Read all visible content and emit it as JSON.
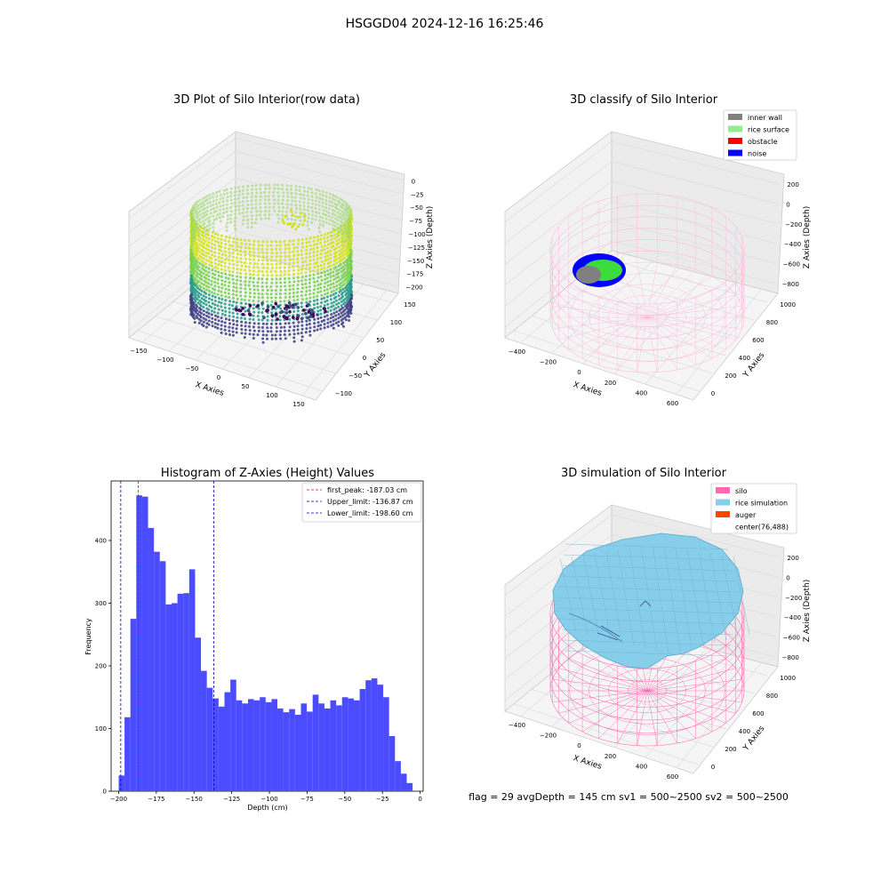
{
  "suptitle": "HSGGD04 2024-12-16 16:25:46",
  "footer": "flag = 29  avgDepth = 145 cm  sv1 = 500~2500  sv2 = 500~2500",
  "chart_data": [
    {
      "type": "scatter3d",
      "title": "3D Plot of Silo Interior(row data)",
      "xlabel": "X Axies",
      "ylabel": "Y Axies",
      "zlabel": "Z Axies (Depth)",
      "xticks": [
        "−150",
        "−100",
        "−50",
        "0",
        "50",
        "100",
        "150"
      ],
      "yticks": [
        "−100",
        "−50",
        "0",
        "50",
        "100",
        "150"
      ],
      "zticks": [
        "0",
        "−25",
        "−50",
        "−75",
        "−100",
        "−125",
        "−150",
        "−175",
        "−200"
      ],
      "xlim": [
        -170,
        170
      ],
      "ylim": [
        -110,
        170
      ],
      "zlim": [
        -210,
        0
      ],
      "colormap": "viridis",
      "colors": {
        "ring_bright": "#d4e21a",
        "ring_mid": "#7ad151",
        "ring_teal": "#2a9c8a",
        "ring_dark": "#414487",
        "floor": "#440154"
      }
    },
    {
      "type": "scatter3d",
      "title": "3D classify of Silo Interior",
      "xlabel": "X Axies",
      "ylabel": "Y Axies",
      "zlabel": "Z Axies (Depth)",
      "xticks": [
        "−400",
        "−200",
        "0",
        "200",
        "400",
        "600"
      ],
      "yticks": [
        "0",
        "200",
        "400",
        "600",
        "800",
        "1000"
      ],
      "zticks": [
        "200",
        "0",
        "−200",
        "−400",
        "−600",
        "−800"
      ],
      "legend": [
        {
          "label": "inner wall",
          "color": "#808080"
        },
        {
          "label": "rice surface",
          "color": "#90ee90"
        },
        {
          "label": "obstacle",
          "color": "#ff0000"
        },
        {
          "label": "noise",
          "color": "#0000ff"
        }
      ],
      "legend_position": "top-right",
      "silo_color": "#ffb6d9"
    },
    {
      "type": "bar",
      "title": "Histogram of Z-Axies (Height) Values",
      "xlabel": "Depth (cm)",
      "ylabel": "Frequency",
      "xlim": [
        -205,
        2
      ],
      "ylim": [
        0,
        495
      ],
      "xticks": [
        -200,
        -175,
        -150,
        -125,
        -100,
        -75,
        -50,
        -25,
        0
      ],
      "xtick_labels": [
        "−200",
        "−175",
        "−150",
        "−125",
        "−100",
        "−75",
        "−50",
        "−25",
        "0"
      ],
      "yticks": [
        0,
        100,
        200,
        300,
        400
      ],
      "yticks_labels": [
        "0",
        "100",
        "200",
        "300",
        "400"
      ],
      "bin_start": -200,
      "bin_width": 3.9,
      "values": [
        25,
        118,
        275,
        472,
        470,
        420,
        382,
        367,
        298,
        300,
        315,
        316,
        354,
        245,
        192,
        165,
        148,
        135,
        158,
        178,
        145,
        140,
        147,
        145,
        150,
        142,
        147,
        132,
        126,
        131,
        122,
        140,
        127,
        154,
        140,
        132,
        145,
        137,
        150,
        148,
        145,
        163,
        177,
        180,
        170,
        150,
        88,
        48,
        28,
        13
      ],
      "bar_color": "#4b4bff",
      "vlines": [
        {
          "label": "first_peak: -187.03 cm",
          "x": -187.03,
          "color": "#ff0000"
        },
        {
          "label": "Upper_limit: -136.87 cm",
          "x": -136.87,
          "color": "#0000aa"
        },
        {
          "label": "Lower_limit: -198.60 cm",
          "x": -198.6,
          "color": "#0000aa"
        }
      ],
      "legend_position": "top-right"
    },
    {
      "type": "surface3d",
      "title": "3D simulation of Silo Interior",
      "xlabel": "X Axies",
      "ylabel": "Y Axies",
      "zlabel": "Z Axies (Depth)",
      "xticks": [
        "−400",
        "−200",
        "0",
        "200",
        "400",
        "600"
      ],
      "yticks": [
        "0",
        "200",
        "400",
        "600",
        "800",
        "1000"
      ],
      "zticks": [
        "200",
        "0",
        "−200",
        "−400",
        "−600",
        "−800"
      ],
      "legend": [
        {
          "label": "silo",
          "color": "#ff69b4"
        },
        {
          "label": "rice simulation",
          "color": "#87ceeb"
        },
        {
          "label": "auger",
          "color": "#ff4500"
        },
        {
          "label": "center(76,488)",
          "color": ""
        }
      ],
      "legend_position": "top-right"
    }
  ]
}
